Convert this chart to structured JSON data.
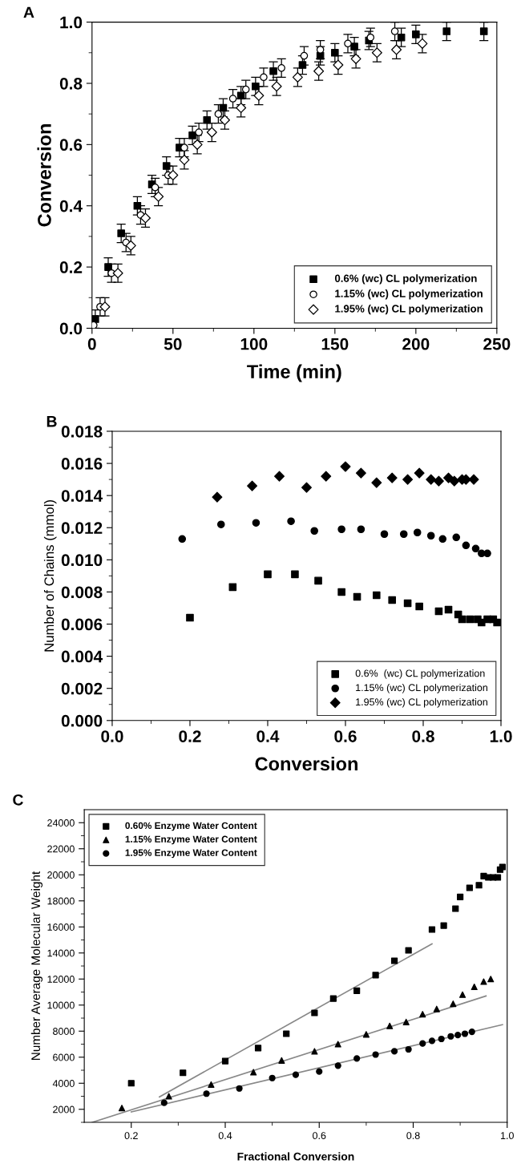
{
  "chart_data": [
    {
      "type": "scatter",
      "title": "A",
      "xlabel": "Time (min)",
      "ylabel": "Conversion",
      "xlim": [
        0,
        250
      ],
      "ylim": [
        0,
        1.0
      ],
      "xticks": [
        0,
        {
          "value": 25,
          "label": null
        },
        50,
        {
          "value": 75,
          "label": null
        },
        100,
        {
          "value": 125,
          "label": null
        },
        150,
        {
          "value": 175,
          "label": null
        },
        200,
        {
          "value": 225,
          "label": null
        },
        250
      ],
      "yticks": [
        {
          "value": 0,
          "label": "0.0"
        },
        {
          "value": 0.1,
          "label": null
        },
        0.2,
        {
          "value": 0.3,
          "label": null
        },
        0.4,
        {
          "value": 0.5,
          "label": null
        },
        0.6,
        {
          "value": 0.7,
          "label": null
        },
        0.8,
        {
          "value": 0.9,
          "label": null
        },
        {
          "value": 1,
          "label": "1.0"
        }
      ],
      "legend": "bottom right",
      "grid": false,
      "series": [
        {
          "name": "0.6% (wc) CL polymerization",
          "color": "#000000",
          "marker": "square",
          "x": [
            2,
            10,
            18,
            28,
            37,
            46,
            54,
            62,
            71,
            81,
            92,
            101,
            112,
            130,
            141,
            150,
            162,
            171,
            191,
            200,
            219,
            242
          ],
          "values": [
            0.03,
            0.2,
            0.31,
            0.4,
            0.47,
            0.53,
            0.59,
            0.63,
            0.68,
            0.72,
            0.76,
            0.79,
            0.84,
            0.86,
            0.89,
            0.9,
            0.92,
            0.94,
            0.95,
            0.96,
            0.97,
            0.97
          ],
          "errors": [
            0.03,
            0.03,
            0.03,
            0.03,
            0.03,
            0.03,
            0.03,
            0.03,
            0.03,
            0.03,
            0.03,
            0.03,
            0.03,
            0.03,
            0.03,
            0.03,
            0.03,
            0.03,
            0.03,
            0.03,
            0.03,
            0.03
          ]
        },
        {
          "name": "1.15% (wc) CL polymerization",
          "color": "#ffffff",
          "marker": "circle",
          "x": [
            1,
            5,
            12,
            21,
            30,
            39,
            47,
            57,
            66,
            78,
            87,
            95,
            106,
            117,
            131,
            141,
            158,
            172,
            187
          ],
          "values": [
            0.01,
            0.07,
            0.18,
            0.28,
            0.37,
            0.46,
            0.5,
            0.59,
            0.64,
            0.7,
            0.75,
            0.78,
            0.82,
            0.85,
            0.89,
            0.91,
            0.93,
            0.95,
            0.97
          ],
          "errors": [
            0.03,
            0.03,
            0.03,
            0.03,
            0.03,
            0.03,
            0.03,
            0.03,
            0.03,
            0.03,
            0.03,
            0.03,
            0.03,
            0.03,
            0.03,
            0.03,
            0.03,
            0.03,
            0.03
          ]
        },
        {
          "name": "1.95% (wc) CL polymerization",
          "color": "#ffffff",
          "marker": "diamond",
          "x": [
            8,
            16,
            24,
            33,
            41,
            50,
            57,
            65,
            74,
            82,
            92,
            103,
            114,
            127,
            140,
            152,
            163,
            176,
            188,
            204
          ],
          "values": [
            0.07,
            0.18,
            0.27,
            0.36,
            0.43,
            0.5,
            0.55,
            0.6,
            0.64,
            0.68,
            0.72,
            0.76,
            0.79,
            0.82,
            0.84,
            0.86,
            0.88,
            0.9,
            0.91,
            0.93
          ],
          "errors": [
            0.03,
            0.03,
            0.03,
            0.03,
            0.03,
            0.03,
            0.03,
            0.03,
            0.03,
            0.03,
            0.03,
            0.03,
            0.03,
            0.03,
            0.03,
            0.03,
            0.03,
            0.03,
            0.03,
            0.03
          ]
        }
      ]
    },
    {
      "type": "scatter",
      "title": "B",
      "xlabel": "Conversion",
      "ylabel": "Number of Chains (mmol)",
      "xlim": [
        0,
        1.0
      ],
      "ylim": [
        0,
        0.018
      ],
      "xticks": [
        {
          "value": 0,
          "label": "0.0"
        },
        {
          "value": 0.1,
          "label": null
        },
        0.2,
        {
          "value": 0.3,
          "label": null
        },
        0.4,
        {
          "value": 0.5,
          "label": null
        },
        0.6,
        {
          "value": 0.7,
          "label": null
        },
        0.8,
        {
          "value": 0.9,
          "label": null
        },
        {
          "value": 1,
          "label": "1.0"
        }
      ],
      "yticks": [
        {
          "value": 0,
          "label": "0.000"
        },
        {
          "value": 0.001,
          "label": null
        },
        {
          "value": 0.002,
          "label": "0.002"
        },
        {
          "value": 0.003,
          "label": null
        },
        {
          "value": 0.004,
          "label": "0.004"
        },
        {
          "value": 0.005,
          "label": null
        },
        {
          "value": 0.006,
          "label": "0.006"
        },
        {
          "value": 0.007,
          "label": null
        },
        {
          "value": 0.008,
          "label": "0.008"
        },
        {
          "value": 0.009,
          "label": null
        },
        {
          "value": 0.01,
          "label": "0.010"
        },
        {
          "value": 0.011,
          "label": null
        },
        {
          "value": 0.012,
          "label": "0.012"
        },
        {
          "value": 0.013,
          "label": null
        },
        {
          "value": 0.014,
          "label": "0.014"
        },
        {
          "value": 0.015,
          "label": null
        },
        {
          "value": 0.016,
          "label": "0.016"
        },
        {
          "value": 0.017,
          "label": null
        },
        {
          "value": 0.018,
          "label": "0.018"
        }
      ],
      "legend": "bottom right",
      "grid": false,
      "series": [
        {
          "name": "0.6%  (wc) CL polymerization",
          "color": "#000000",
          "marker": "square",
          "x": [
            0.2,
            0.31,
            0.4,
            0.47,
            0.53,
            0.59,
            0.63,
            0.68,
            0.72,
            0.76,
            0.79,
            0.84,
            0.865,
            0.89,
            0.9,
            0.92,
            0.94,
            0.95,
            0.965,
            0.98,
            0.99
          ],
          "values": [
            0.0064,
            0.0083,
            0.0091,
            0.0091,
            0.0087,
            0.008,
            0.0077,
            0.0078,
            0.0075,
            0.0073,
            0.0071,
            0.0068,
            0.0069,
            0.0066,
            0.0063,
            0.0063,
            0.0063,
            0.0061,
            0.0063,
            0.0063,
            0.0061
          ]
        },
        {
          "name": "1.15% (wc) CL polymerization",
          "color": "#000000",
          "marker": "circle",
          "x": [
            0.18,
            0.28,
            0.37,
            0.46,
            0.52,
            0.59,
            0.64,
            0.7,
            0.75,
            0.785,
            0.82,
            0.85,
            0.885,
            0.91,
            0.935,
            0.95,
            0.965
          ],
          "values": [
            0.0113,
            0.0122,
            0.0123,
            0.0124,
            0.0118,
            0.0119,
            0.0119,
            0.0116,
            0.0116,
            0.0117,
            0.0115,
            0.0113,
            0.0114,
            0.0109,
            0.0107,
            0.0104,
            0.0104
          ]
        },
        {
          "name": "1.95% (wc) CL polymerization",
          "color": "#000000",
          "marker": "diamond",
          "x": [
            0.27,
            0.36,
            0.43,
            0.5,
            0.55,
            0.6,
            0.64,
            0.68,
            0.72,
            0.76,
            0.79,
            0.82,
            0.84,
            0.865,
            0.88,
            0.9,
            0.91,
            0.93
          ],
          "values": [
            0.0139,
            0.0146,
            0.0152,
            0.0145,
            0.0152,
            0.0158,
            0.0154,
            0.0148,
            0.0151,
            0.015,
            0.0154,
            0.015,
            0.0149,
            0.0151,
            0.0149,
            0.015,
            0.015,
            0.015
          ]
        }
      ]
    },
    {
      "type": "scatter",
      "title": "C",
      "xlabel": "Fractional Conversion",
      "ylabel": "Number Average Molecular Weight",
      "xlim": [
        0.1,
        1.0
      ],
      "ylim": [
        1000,
        25000
      ],
      "xticks": [
        0.2,
        {
          "value": 0.3,
          "label": null
        },
        0.4,
        {
          "value": 0.5,
          "label": null
        },
        0.6,
        {
          "value": 0.7,
          "label": null
        },
        0.8,
        {
          "value": 0.9,
          "label": null
        },
        {
          "value": 1,
          "label": "1.0"
        }
      ],
      "yticks": [
        {
          "value": 1000,
          "label": null
        },
        2000,
        {
          "value": 3000,
          "label": null
        },
        4000,
        {
          "value": 5000,
          "label": null
        },
        6000,
        {
          "value": 7000,
          "label": null
        },
        8000,
        {
          "value": 9000,
          "label": null
        },
        10000,
        {
          "value": 11000,
          "label": null
        },
        12000,
        {
          "value": 13000,
          "label": null
        },
        14000,
        {
          "value": 15000,
          "label": null
        },
        16000,
        {
          "value": 17000,
          "label": null
        },
        18000,
        {
          "value": 19000,
          "label": null
        },
        20000,
        {
          "value": 21000,
          "label": null
        },
        22000,
        {
          "value": 23000,
          "label": null
        },
        24000
      ],
      "legend": "top left",
      "grid": false,
      "series": [
        {
          "name": "0.60% Enzyme Water Content",
          "color": "#000000",
          "marker": "square",
          "x": [
            0.2,
            0.31,
            0.4,
            0.47,
            0.53,
            0.59,
            0.63,
            0.68,
            0.72,
            0.76,
            0.79,
            0.84,
            0.865,
            0.89,
            0.9,
            0.92,
            0.94,
            0.95,
            0.96,
            0.97,
            0.98,
            0.985,
            0.99
          ],
          "values": [
            4000,
            4800,
            5700,
            6700,
            7800,
            9400,
            10500,
            11100,
            12300,
            13400,
            14200,
            15800,
            16100,
            17400,
            18300,
            19000,
            19200,
            19900,
            19800,
            19800,
            19800,
            20400,
            20600
          ]
        },
        {
          "name": "1.15% Enzyme Water Content",
          "color": "#000000",
          "marker": "triangle",
          "x": [
            0.18,
            0.28,
            0.37,
            0.46,
            0.52,
            0.59,
            0.64,
            0.7,
            0.75,
            0.785,
            0.82,
            0.85,
            0.885,
            0.905,
            0.93,
            0.95,
            0.965
          ],
          "values": [
            2100,
            3000,
            3900,
            4850,
            5750,
            6450,
            7000,
            7750,
            8400,
            8700,
            9300,
            9700,
            10100,
            10800,
            11400,
            11800,
            12000
          ]
        },
        {
          "name": "1.95% Enzyme Water Content",
          "color": "#000000",
          "marker": "circle",
          "x": [
            0.27,
            0.36,
            0.43,
            0.5,
            0.55,
            0.6,
            0.64,
            0.68,
            0.72,
            0.76,
            0.79,
            0.82,
            0.84,
            0.86,
            0.88,
            0.895,
            0.91,
            0.925
          ],
          "values": [
            2500,
            3200,
            3600,
            4400,
            4650,
            4900,
            5350,
            5900,
            6200,
            6450,
            6600,
            7050,
            7250,
            7400,
            7600,
            7700,
            7800,
            7950
          ]
        },
        {
          "type": "line",
          "color": "#888888",
          "x": [
            0.26,
            0.84
          ],
          "values": [
            2950,
            14700
          ]
        },
        {
          "type": "line",
          "color": "#888888",
          "x": [
            0.117,
            0.955
          ],
          "values": [
            1000,
            10700
          ]
        },
        {
          "type": "line",
          "color": "#888888",
          "x": [
            0.2,
            0.99
          ],
          "values": [
            1800,
            8500
          ]
        }
      ]
    }
  ]
}
